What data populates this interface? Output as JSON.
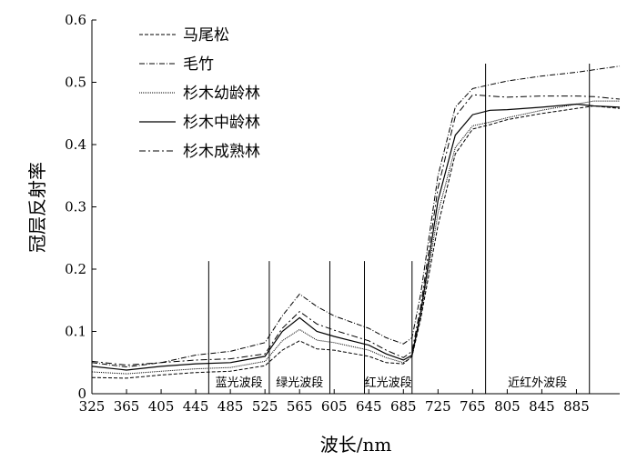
{
  "chart_data": {
    "type": "line",
    "title": "",
    "xlabel": "波长/nm",
    "ylabel": "冠层反射率",
    "xlim": [
      325,
      935
    ],
    "ylim": [
      0,
      0.6
    ],
    "x_ticks": [
      325,
      365,
      405,
      445,
      485,
      525,
      565,
      605,
      645,
      685,
      725,
      765,
      805,
      845,
      885
    ],
    "y_ticks": [
      0,
      0.1,
      0.2,
      0.3,
      0.4,
      0.5,
      0.6
    ],
    "y_tick_labels": [
      "0",
      "0.1",
      "0.2",
      "0.3",
      "0.4",
      "0.5",
      "0.6"
    ],
    "grid": false,
    "legend_position": "top-left",
    "bands": [
      {
        "label": "蓝光波段",
        "start": 460,
        "end": 530
      },
      {
        "label": "绿光波段",
        "start": 530,
        "end": 600
      },
      {
        "label": "红光波段",
        "start": 640,
        "end": 695
      },
      {
        "label": "近红外波段",
        "start": 780,
        "end": 900
      }
    ],
    "band_line_tops": [
      0.213,
      0.213,
      0.213,
      0.213,
      0.213,
      0.53,
      0.53
    ],
    "series": [
      {
        "name": "马尾松",
        "dash": "4,2",
        "width": 1,
        "points": [
          [
            325,
            0.026
          ],
          [
            365,
            0.025
          ],
          [
            405,
            0.03
          ],
          [
            445,
            0.034
          ],
          [
            485,
            0.036
          ],
          [
            525,
            0.045
          ],
          [
            545,
            0.07
          ],
          [
            565,
            0.085
          ],
          [
            585,
            0.072
          ],
          [
            605,
            0.07
          ],
          [
            645,
            0.06
          ],
          [
            665,
            0.05
          ],
          [
            685,
            0.048
          ],
          [
            695,
            0.06
          ],
          [
            705,
            0.12
          ],
          [
            725,
            0.27
          ],
          [
            745,
            0.385
          ],
          [
            765,
            0.425
          ],
          [
            785,
            0.432
          ],
          [
            805,
            0.44
          ],
          [
            845,
            0.45
          ],
          [
            885,
            0.458
          ],
          [
            905,
            0.462
          ],
          [
            935,
            0.458
          ]
        ]
      },
      {
        "name": "毛竹",
        "dash": "6,2,1,2",
        "width": 1,
        "points": [
          [
            325,
            0.05
          ],
          [
            365,
            0.043
          ],
          [
            405,
            0.05
          ],
          [
            445,
            0.062
          ],
          [
            485,
            0.068
          ],
          [
            525,
            0.082
          ],
          [
            545,
            0.125
          ],
          [
            565,
            0.16
          ],
          [
            585,
            0.14
          ],
          [
            605,
            0.125
          ],
          [
            645,
            0.105
          ],
          [
            665,
            0.09
          ],
          [
            685,
            0.08
          ],
          [
            695,
            0.09
          ],
          [
            705,
            0.16
          ],
          [
            725,
            0.35
          ],
          [
            745,
            0.46
          ],
          [
            765,
            0.49
          ],
          [
            785,
            0.496
          ],
          [
            805,
            0.502
          ],
          [
            845,
            0.51
          ],
          [
            885,
            0.516
          ],
          [
            905,
            0.52
          ],
          [
            935,
            0.526
          ]
        ]
      },
      {
        "name": "杉木幼龄林",
        "dash": "1,1",
        "width": 1,
        "points": [
          [
            325,
            0.035
          ],
          [
            365,
            0.032
          ],
          [
            405,
            0.036
          ],
          [
            445,
            0.04
          ],
          [
            485,
            0.042
          ],
          [
            525,
            0.052
          ],
          [
            545,
            0.085
          ],
          [
            565,
            0.103
          ],
          [
            585,
            0.086
          ],
          [
            605,
            0.082
          ],
          [
            645,
            0.07
          ],
          [
            665,
            0.058
          ],
          [
            685,
            0.05
          ],
          [
            695,
            0.06
          ],
          [
            705,
            0.125
          ],
          [
            725,
            0.29
          ],
          [
            745,
            0.395
          ],
          [
            765,
            0.43
          ],
          [
            785,
            0.436
          ],
          [
            805,
            0.443
          ],
          [
            845,
            0.455
          ],
          [
            885,
            0.465
          ],
          [
            905,
            0.47
          ],
          [
            935,
            0.47
          ]
        ]
      },
      {
        "name": "杉木中龄林",
        "dash": "",
        "width": 1.2,
        "points": [
          [
            325,
            0.044
          ],
          [
            365,
            0.038
          ],
          [
            405,
            0.044
          ],
          [
            445,
            0.048
          ],
          [
            485,
            0.05
          ],
          [
            525,
            0.06
          ],
          [
            545,
            0.1
          ],
          [
            565,
            0.122
          ],
          [
            585,
            0.1
          ],
          [
            605,
            0.092
          ],
          [
            645,
            0.078
          ],
          [
            665,
            0.064
          ],
          [
            685,
            0.054
          ],
          [
            695,
            0.062
          ],
          [
            705,
            0.13
          ],
          [
            725,
            0.31
          ],
          [
            745,
            0.415
          ],
          [
            765,
            0.448
          ],
          [
            785,
            0.455
          ],
          [
            805,
            0.456
          ],
          [
            845,
            0.46
          ],
          [
            885,
            0.465
          ],
          [
            905,
            0.462
          ],
          [
            935,
            0.46
          ]
        ]
      },
      {
        "name": "杉木成熟林",
        "dash": "7,3,2,3",
        "width": 1,
        "points": [
          [
            325,
            0.052
          ],
          [
            365,
            0.046
          ],
          [
            405,
            0.05
          ],
          [
            445,
            0.054
          ],
          [
            485,
            0.056
          ],
          [
            525,
            0.064
          ],
          [
            545,
            0.105
          ],
          [
            565,
            0.132
          ],
          [
            585,
            0.112
          ],
          [
            605,
            0.102
          ],
          [
            645,
            0.085
          ],
          [
            665,
            0.07
          ],
          [
            685,
            0.058
          ],
          [
            695,
            0.068
          ],
          [
            705,
            0.14
          ],
          [
            725,
            0.33
          ],
          [
            745,
            0.445
          ],
          [
            765,
            0.48
          ],
          [
            785,
            0.478
          ],
          [
            805,
            0.476
          ],
          [
            845,
            0.478
          ],
          [
            885,
            0.478
          ],
          [
            905,
            0.477
          ],
          [
            935,
            0.473
          ]
        ]
      }
    ]
  }
}
